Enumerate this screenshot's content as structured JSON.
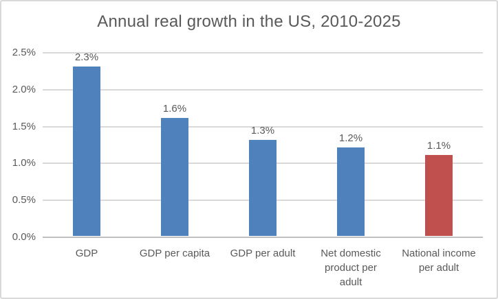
{
  "chart_data": {
    "type": "bar",
    "title": "Annual real growth in the US, 2010-2025",
    "categories": [
      "GDP",
      "GDP per capita",
      "GDP per adult",
      "Net domestic product per adult",
      "National income per adult"
    ],
    "values": [
      2.3,
      1.6,
      1.3,
      1.2,
      1.1
    ],
    "value_labels": [
      "2.3%",
      "1.6%",
      "1.3%",
      "1.2%",
      "1.1%"
    ],
    "bar_colors": [
      "#4F81BD",
      "#4F81BD",
      "#4F81BD",
      "#4F81BD",
      "#C0504D"
    ],
    "y_ticks": [
      {
        "value": 0.0,
        "label": "0.0%"
      },
      {
        "value": 0.5,
        "label": "0.5%"
      },
      {
        "value": 1.0,
        "label": "1.0%"
      },
      {
        "value": 1.5,
        "label": "1.5%"
      },
      {
        "value": 2.0,
        "label": "2.0%"
      },
      {
        "value": 2.5,
        "label": "2.5%"
      }
    ],
    "ylim": [
      0,
      2.5
    ],
    "xlabel": "",
    "ylabel": "",
    "grid": "horizontal",
    "legend": "none",
    "colors": {
      "series_blue": "#4F81BD",
      "series_red": "#C0504D",
      "gridline": "#D9D9D9",
      "axis_line": "#BFBFBF",
      "text": "#595959",
      "frame_border": "#D9D9D9",
      "background": "#FFFFFF"
    }
  }
}
